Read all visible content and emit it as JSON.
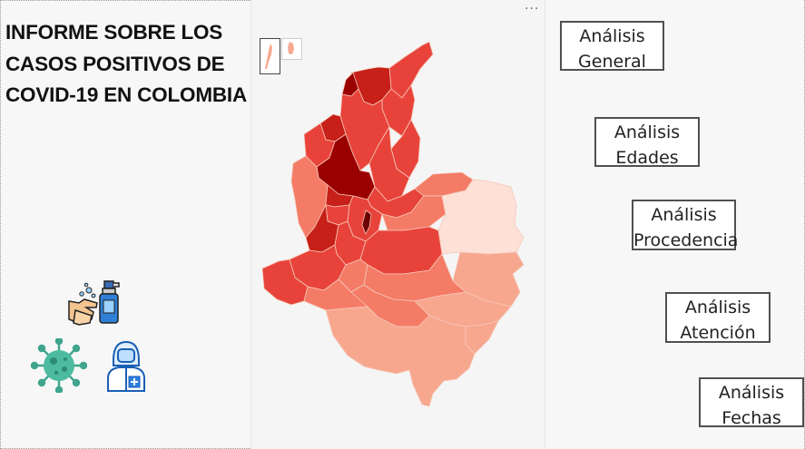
{
  "report": {
    "title": "INFORME SOBRE LOS CASOS POSITIVOS DE COVID-19 EN COLOMBIA"
  },
  "visual_menu_label": "···",
  "buttons": [
    {
      "line1": "Análisis",
      "line2": "General"
    },
    {
      "line1": "Análisis",
      "line2": "Edades"
    },
    {
      "line1": "Análisis",
      "line2": "Procedencia"
    },
    {
      "line1": "Análisis",
      "line2": "Atención"
    },
    {
      "line1": "Análisis",
      "line2": "Fechas"
    }
  ],
  "icons": [
    "hand-sanitizer-icon",
    "coronavirus-icon",
    "health-worker-icon"
  ],
  "colors": {
    "darkest": "#9b0000",
    "dark": "#c62018",
    "mid": "#e8433a",
    "light": "#f47b66",
    "lighter": "#f8a78f",
    "lightest": "#fde0d6"
  }
}
